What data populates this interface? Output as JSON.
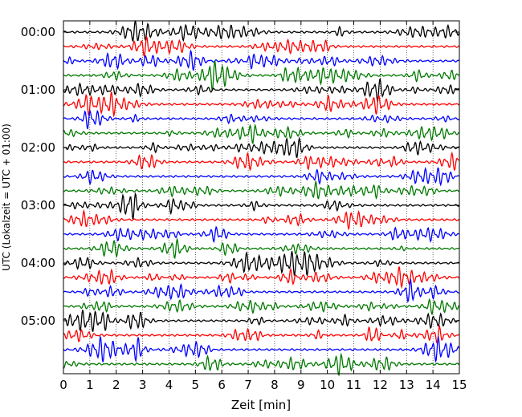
{
  "chart_data": {
    "type": "line",
    "title": "",
    "xlabel": "Zeit  [min]",
    "ylabel": "UTC (Lokalzeit = UTC + 01:00)",
    "xlim": [
      0,
      15
    ],
    "x_ticks": [
      0,
      1,
      2,
      3,
      4,
      5,
      6,
      7,
      8,
      9,
      10,
      11,
      12,
      13,
      14,
      15
    ],
    "y_tick_labels": [
      "00:00",
      "01:00",
      "02:00",
      "03:00",
      "04:00",
      "05:00"
    ],
    "y_tick_rows": [
      0,
      4,
      8,
      12,
      16,
      20
    ],
    "trace_minutes": 15,
    "grid": "vertical dotted",
    "trace_colors": [
      "#000000",
      "#ff0000",
      "#0000ff",
      "#007a00"
    ],
    "traces": [
      {
        "start": "00:00"
      },
      {
        "start": "00:15"
      },
      {
        "start": "00:30"
      },
      {
        "start": "00:45"
      },
      {
        "start": "01:00"
      },
      {
        "start": "01:15"
      },
      {
        "start": "01:30"
      },
      {
        "start": "01:45"
      },
      {
        "start": "02:00"
      },
      {
        "start": "02:15"
      },
      {
        "start": "02:30"
      },
      {
        "start": "02:45"
      },
      {
        "start": "03:00"
      },
      {
        "start": "03:15"
      },
      {
        "start": "03:30"
      },
      {
        "start": "03:45"
      },
      {
        "start": "04:00"
      },
      {
        "start": "04:15"
      },
      {
        "start": "04:30"
      },
      {
        "start": "04:45"
      },
      {
        "start": "05:00"
      },
      {
        "start": "05:15"
      },
      {
        "start": "05:30"
      },
      {
        "start": "05:45"
      }
    ]
  }
}
